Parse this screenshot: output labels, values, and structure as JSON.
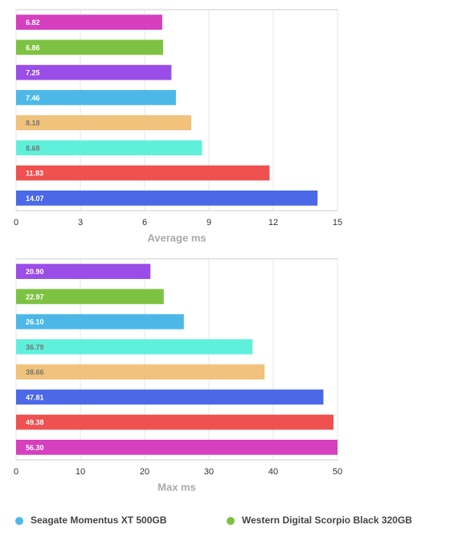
{
  "chart_data": [
    {
      "type": "bar",
      "orientation": "horizontal",
      "x_label": "Average ms",
      "values": [
        6.82,
        6.86,
        7.25,
        7.46,
        8.18,
        8.68,
        11.83,
        14.07
      ],
      "value_labels": [
        "6.82",
        "6.86",
        "7.25",
        "7.46",
        "8.18",
        "8.68",
        "11.83",
        "14.07"
      ],
      "colors": [
        "#d63fbd",
        "#7dc242",
        "#9b4de8",
        "#4db8e8",
        "#f0c27b",
        "#5ff0dc",
        "#ef5050",
        "#4a68e8"
      ],
      "xlim": [
        0,
        15
      ],
      "xticks": [
        0,
        3,
        6,
        9,
        12,
        15
      ],
      "grid": true
    },
    {
      "type": "bar",
      "orientation": "horizontal",
      "x_label": "Max ms",
      "values": [
        20.9,
        22.97,
        26.1,
        36.79,
        38.66,
        47.81,
        49.38,
        56.3
      ],
      "value_labels": [
        "20.90",
        "22.97",
        "26.10",
        "36.79",
        "38.66",
        "47.81",
        "49.38",
        "56.30"
      ],
      "colors": [
        "#9b4de8",
        "#7dc242",
        "#4db8e8",
        "#5ff0dc",
        "#f0c27b",
        "#4a68e8",
        "#ef5050",
        "#d63fbd"
      ],
      "xlim": [
        0,
        50
      ],
      "xticks": [
        0,
        10,
        20,
        30,
        40,
        50
      ],
      "grid": true
    }
  ],
  "legend": [
    {
      "name": "Seagate Momentus XT 500GB",
      "color": "#4db8e8"
    },
    {
      "name": "Western Digital Scorpio Black 320GB",
      "color": "#7dc242"
    }
  ]
}
